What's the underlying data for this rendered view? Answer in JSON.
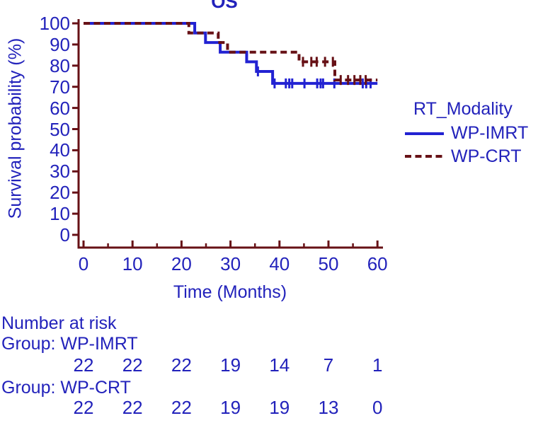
{
  "title": "OS",
  "y_axis": {
    "label": "Survival probability (%)",
    "ticks": [
      0,
      10,
      20,
      30,
      40,
      50,
      60,
      70,
      80,
      90,
      100
    ]
  },
  "x_axis": {
    "label": "Time (Months)",
    "ticks": [
      0,
      10,
      20,
      30,
      40,
      50,
      60
    ],
    "minor_ticks": [
      5,
      15,
      25,
      35,
      45,
      55
    ]
  },
  "legend": {
    "title": "RT_Modality",
    "items": [
      {
        "label": "WP-IMRT",
        "style": "solid",
        "color": "#2222d2"
      },
      {
        "label": "WP-CRT",
        "style": "dashed",
        "color": "#671116"
      }
    ]
  },
  "at_risk": {
    "title": "Number at risk",
    "groups": [
      {
        "label": "Group: WP-IMRT",
        "counts": [
          "22",
          "22",
          "22",
          "19",
          "14",
          "7",
          "1"
        ]
      },
      {
        "label": "Group: WP-CRT",
        "counts": [
          "22",
          "22",
          "22",
          "19",
          "19",
          "13",
          "0"
        ]
      }
    ]
  },
  "chart_data": {
    "type": "line",
    "subtype": "kaplan-meier-step",
    "title": "OS",
    "xlabel": "Time (Months)",
    "ylabel": "Survival probability (%)",
    "xlim": [
      0,
      60
    ],
    "ylim": [
      0,
      100
    ],
    "grid": false,
    "legend_position": "right",
    "series": [
      {
        "name": "WP-IMRT",
        "color": "#2222d2",
        "dash": "solid",
        "steps": [
          [
            0,
            100
          ],
          [
            22.7,
            95.45
          ],
          [
            24.9,
            90.91
          ],
          [
            27.9,
            86.36
          ],
          [
            33.3,
            81.82
          ],
          [
            35.3,
            77.27
          ],
          [
            38.6,
            71.6
          ]
        ],
        "end_x": 60,
        "censors": [
          [
            35.6,
            77.27
          ],
          [
            39.0,
            71.6
          ],
          [
            41.3,
            71.6
          ],
          [
            42.0,
            71.6
          ],
          [
            42.6,
            71.6
          ],
          [
            45.1,
            71.6
          ],
          [
            47.7,
            71.6
          ],
          [
            48.4,
            71.6
          ],
          [
            48.9,
            71.6
          ],
          [
            51.2,
            71.6
          ],
          [
            57.0,
            71.6
          ],
          [
            57.7,
            71.6
          ],
          [
            58.6,
            71.6
          ]
        ]
      },
      {
        "name": "WP-CRT",
        "color": "#671116",
        "dash": "dashed",
        "steps": [
          [
            0,
            100
          ],
          [
            21.5,
            95.45
          ],
          [
            27.5,
            90.91
          ],
          [
            29.4,
            86.36
          ],
          [
            44.0,
            81.82
          ],
          [
            51.3,
            73.2
          ]
        ],
        "end_x": 60,
        "censors": [
          [
            44.8,
            81.82
          ],
          [
            46.5,
            81.82
          ],
          [
            47.6,
            81.82
          ],
          [
            49.3,
            81.82
          ],
          [
            50.9,
            81.82
          ],
          [
            52.5,
            73.2
          ],
          [
            54.0,
            73.2
          ],
          [
            55.3,
            73.2
          ],
          [
            56.5,
            73.2
          ],
          [
            57.6,
            73.2
          ]
        ]
      }
    ]
  },
  "colors": {
    "text": "#2222bb",
    "axis": "#671116",
    "imrt_blue": "#2222d2",
    "crt_maroon": "#671116",
    "background": "#ffffff"
  }
}
